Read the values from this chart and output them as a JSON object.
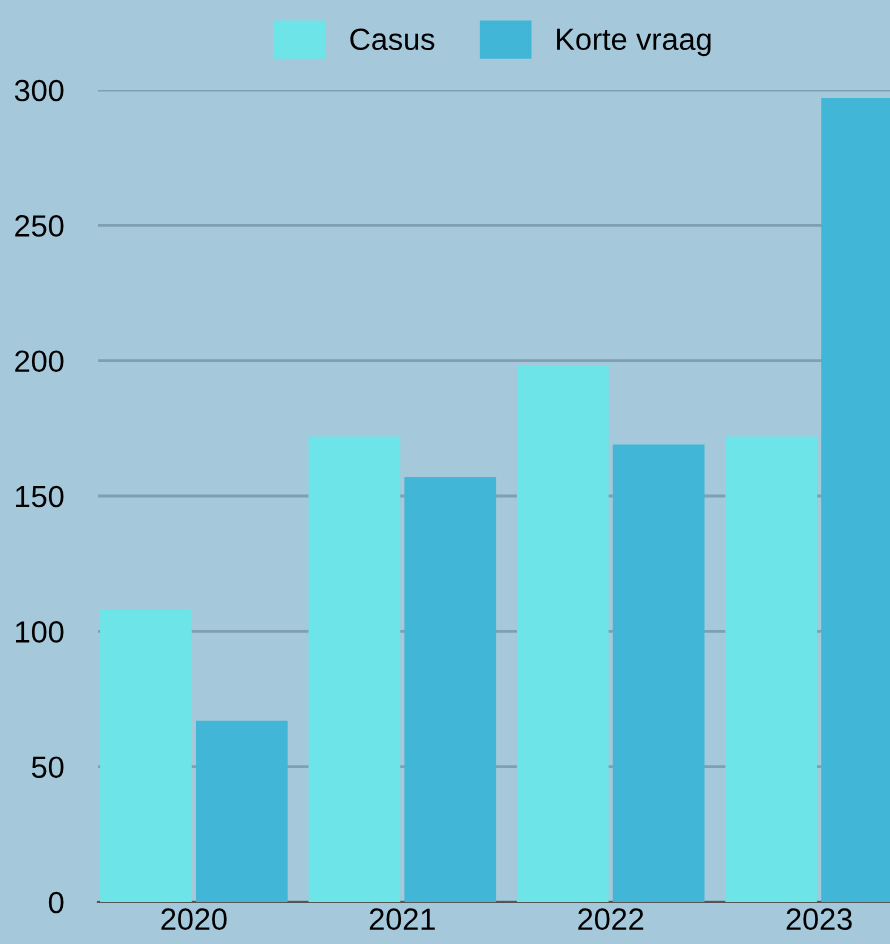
{
  "chart_data": {
    "type": "bar",
    "categories": [
      "2020",
      "2021",
      "2022",
      "2023"
    ],
    "series": [
      {
        "name": "Casus",
        "color": "#6ce4e8",
        "values": [
          108,
          172,
          198,
          172
        ]
      },
      {
        "name": "Korte vraag",
        "color": "#41b6d6",
        "values": [
          67,
          157,
          169,
          297
        ]
      }
    ],
    "ylim": [
      0,
      300
    ],
    "yticks": [
      0,
      50,
      100,
      150,
      200,
      250,
      300
    ],
    "grid": "y",
    "legend": "top"
  }
}
